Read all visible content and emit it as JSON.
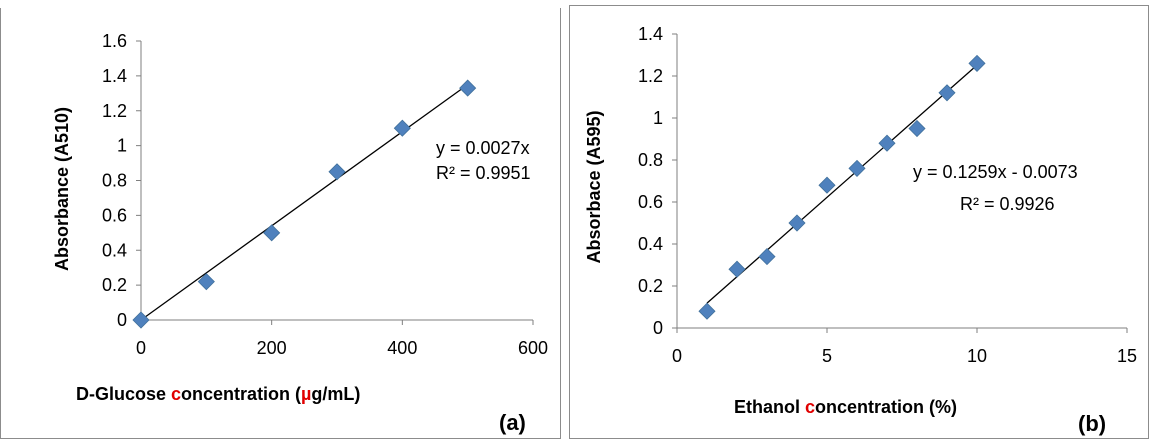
{
  "colors": {
    "marker": "#4f81bd",
    "axis": "#7f7f7f",
    "fit_line": "#000000",
    "accent": "#e00000"
  },
  "chart_data": [
    {
      "type": "scatter",
      "tag": "(a)",
      "xlabel_parts": [
        "D-Glucose ",
        "c",
        "oncentration (",
        "µ",
        "g/mL)"
      ],
      "ylabel": "Absorbance (A510)",
      "xlim": [
        0,
        600
      ],
      "ylim": [
        0,
        1.6
      ],
      "x_ticks": [
        "0",
        "200",
        "400",
        "600"
      ],
      "y_ticks": [
        "0",
        "0.2",
        "0.4",
        "0.6",
        "0.8",
        "1",
        "1.2",
        "1.4",
        "1.6"
      ],
      "series": [
        {
          "x": [
            0,
            100,
            200,
            300,
            400,
            500
          ],
          "y": [
            0,
            0.22,
            0.5,
            0.85,
            1.1,
            1.33
          ],
          "marker": "diamond"
        }
      ],
      "trendline": {
        "equation": "y = 0.0027x",
        "r2": "R² = 0.9951",
        "slope": 0.0027,
        "intercept": 0,
        "x_range": [
          0,
          500
        ]
      },
      "grid": false,
      "legend": "none"
    },
    {
      "type": "scatter",
      "tag": "(b)",
      "xlabel_parts": [
        "Ethanol ",
        "c",
        "oncentration (%)"
      ],
      "ylabel": "Absorbace (A595)",
      "xlim": [
        0,
        15
      ],
      "ylim": [
        0,
        1.4
      ],
      "x_ticks": [
        "0",
        "5",
        "10",
        "15"
      ],
      "y_ticks": [
        "0",
        "0.2",
        "0.4",
        "0.6",
        "0.8",
        "1",
        "1.2",
        "1.4"
      ],
      "series": [
        {
          "x": [
            1,
            2,
            3,
            4,
            5,
            6,
            7,
            8,
            9,
            10
          ],
          "y": [
            0.08,
            0.28,
            0.34,
            0.5,
            0.68,
            0.76,
            0.88,
            0.95,
            1.12,
            1.26
          ],
          "marker": "diamond"
        }
      ],
      "trendline": {
        "equation": "y = 0.1259x - 0.0073",
        "r2": "R² = 0.9926",
        "slope": 0.1259,
        "intercept": -0.0073,
        "x_range": [
          1,
          10
        ]
      },
      "grid": false,
      "legend": "none"
    }
  ]
}
